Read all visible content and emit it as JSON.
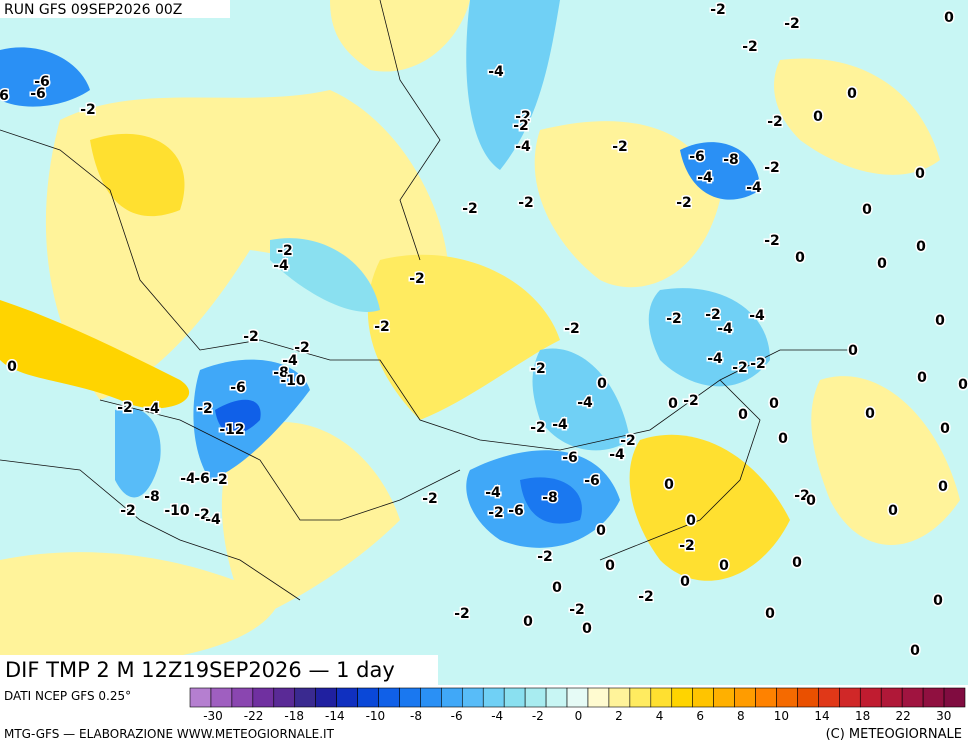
{
  "header": {
    "run": "RUN GFS 09SEP2026 00Z"
  },
  "map": {
    "title": "DIF TMP 2 M 12Z19SEP2026 — 1 day",
    "contour_labels": [
      "-6",
      "6",
      "-6",
      "-2",
      "-4",
      "-2",
      "-2",
      "-4",
      "-2",
      "-2",
      "-2",
      "0",
      "-2",
      "0",
      "0",
      "-2",
      "-6",
      "-8",
      "-4",
      "-2",
      "-4",
      "0",
      "-2",
      "0",
      "-2",
      "-2",
      "-2",
      "-4",
      "-2",
      "0",
      "0",
      "0",
      "-2",
      "-2",
      "-2",
      "-2",
      "-2",
      "-4",
      "-4",
      "0",
      "-2",
      "-2",
      "-4",
      "-8",
      "-10",
      "0",
      "0",
      "-4",
      "-2",
      "-2",
      "-2",
      "0",
      "-6",
      "0",
      "0",
      "-2",
      "-4",
      "-2",
      "0",
      "-2",
      "-4",
      "0",
      "0",
      "-12",
      "-2",
      "-4",
      "0",
      "0",
      "0",
      "-2",
      "-6",
      "-4",
      "-6",
      "-4",
      "-6",
      "-2",
      "0",
      "-2",
      "-4",
      "-8",
      "-2",
      "0",
      "0",
      "-8",
      "-2",
      "-10",
      "-2",
      "-4",
      "-2",
      "-6",
      "0",
      "0",
      "0",
      "-2",
      "-2",
      "0",
      "0",
      "0",
      "0",
      "0",
      "-2",
      "-2",
      "-2",
      "0",
      "0",
      "0",
      "0",
      "0"
    ]
  },
  "legend": {
    "source": "DATI NCEP GFS 0.25°",
    "colors": [
      "#b57fd0",
      "#9f5fc0",
      "#8a46b0",
      "#7030a0",
      "#5a2a96",
      "#3a2a90",
      "#2020a0",
      "#1030c0",
      "#0a48d8",
      "#1060e8",
      "#1a78f0",
      "#2a90f5",
      "#40a8f8",
      "#58bcf8",
      "#70d0f5",
      "#8ae0f0",
      "#a8ecf0",
      "#c8f6f4",
      "#e6fbf6",
      "#fffbd0",
      "#fff39a",
      "#ffeb60",
      "#ffe030",
      "#ffd400",
      "#ffc400",
      "#ffb000",
      "#ff9c00",
      "#ff8200",
      "#f56a00",
      "#ea5000",
      "#e03818",
      "#d02828",
      "#c01c30",
      "#b01838",
      "#a01440",
      "#901040",
      "#800c40"
    ],
    "labels": [
      "-30",
      "-22",
      "-18",
      "-14",
      "-10",
      "-8",
      "-6",
      "-4",
      "-2",
      "0",
      "2",
      "4",
      "6",
      "8",
      "10",
      "14",
      "18",
      "22",
      "30"
    ]
  },
  "footer": {
    "left": "MTG-GFS — ELABORAZIONE WWW.METEOGIORNALE.IT",
    "right": "(C) METEOGIORNALE"
  }
}
